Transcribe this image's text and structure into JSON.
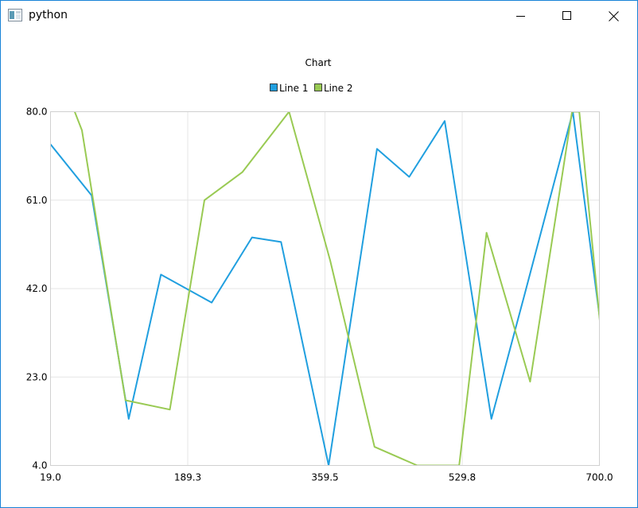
{
  "window": {
    "title": "python"
  },
  "colors": {
    "line1": "#209fdf",
    "line2": "#99ca53",
    "grid": "#e6e6e6",
    "axis": "#d0d0d0"
  },
  "chart_data": {
    "type": "line",
    "title": "Chart",
    "xlabel": "",
    "ylabel": "",
    "xlim": [
      19.0,
      700.0
    ],
    "ylim": [
      4.0,
      80.0
    ],
    "x_ticks": [
      "19.0",
      "189.3",
      "359.5",
      "529.8",
      "700.0"
    ],
    "y_ticks": [
      "80.0",
      "61.0",
      "42.0",
      "23.0",
      "4.0"
    ],
    "grid": true,
    "legend": "top-center",
    "series": [
      {
        "name": "Line 1",
        "color": "#209fdf",
        "x": [
          19,
          70,
          116,
          156,
          219,
          269,
          305,
          364,
          424,
          464,
          508,
          566,
          606,
          667,
          710
        ],
        "y": [
          73,
          62,
          14,
          45,
          39,
          53,
          52,
          4,
          72,
          66,
          78,
          14,
          40,
          80,
          23
        ]
      },
      {
        "name": "Line 2",
        "color": "#99ca53",
        "x": [
          49,
          58,
          112,
          167,
          210,
          257,
          315,
          366,
          421,
          474,
          526,
          560,
          614,
          666,
          675,
          713
        ],
        "y": [
          80,
          76,
          18,
          16,
          61,
          67,
          80,
          48,
          8,
          4,
          4,
          54,
          22,
          80,
          80,
          13
        ]
      }
    ]
  }
}
